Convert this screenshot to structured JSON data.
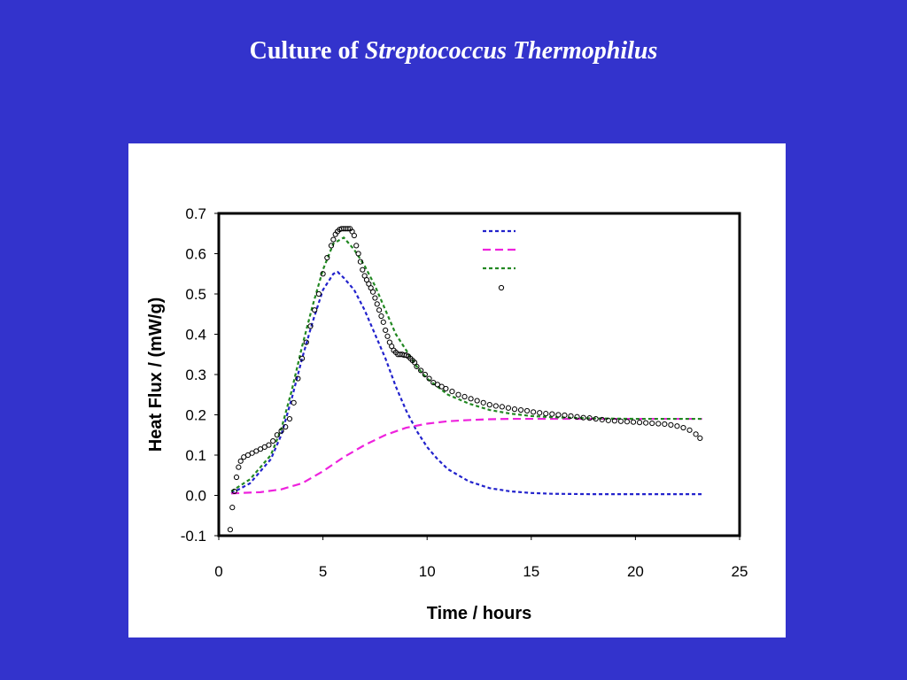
{
  "slide": {
    "title_plain": "Culture of ",
    "title_italic": "Streptococcus Thermophilus"
  },
  "colors": {
    "background": "#3333cc",
    "panel": "#ffffff",
    "series_blue": "#2222cc",
    "series_magenta": "#ee22dd",
    "series_green": "#228822",
    "series_points": "#000000"
  },
  "chart_data": {
    "type": "scatter",
    "xlabel": "Time / hours",
    "ylabel": "Heat Flux / (mW/g)",
    "xlim": [
      0,
      25
    ],
    "ylim": [
      -0.1,
      0.7
    ],
    "xticks": [
      "0",
      "5",
      "10",
      "15",
      "20",
      "25"
    ],
    "yticks": [
      "-0.1",
      "0.0",
      "0.1",
      "0.2",
      "0.3",
      "0.4",
      "0.5",
      "0.6",
      "0.7"
    ],
    "grid": false,
    "legend": {
      "placement": "top-right",
      "entries": [
        "",
        "",
        "",
        ""
      ]
    },
    "series": [
      {
        "style": "dashed-line",
        "color": "#2222cc",
        "x": [
          0.6,
          1.5,
          2.5,
          3.0,
          3.5,
          4.0,
          4.5,
          5.0,
          5.5,
          5.7,
          6.0,
          6.5,
          7.0,
          7.5,
          8.0,
          8.5,
          9.0,
          9.5,
          10.0,
          10.5,
          11.0,
          12.0,
          13.0,
          14.0,
          15.0,
          16.0,
          18.0,
          20.0,
          23.2
        ],
        "y": [
          0.005,
          0.03,
          0.09,
          0.15,
          0.24,
          0.34,
          0.43,
          0.51,
          0.55,
          0.555,
          0.54,
          0.51,
          0.46,
          0.4,
          0.34,
          0.27,
          0.21,
          0.16,
          0.12,
          0.09,
          0.065,
          0.035,
          0.018,
          0.01,
          0.006,
          0.004,
          0.003,
          0.003,
          0.003
        ]
      },
      {
        "style": "dashed-line",
        "color": "#ee22dd",
        "x": [
          0.6,
          2.0,
          3.0,
          4.0,
          5.0,
          6.0,
          7.0,
          8.0,
          9.0,
          10.0,
          11.0,
          12.0,
          13.0,
          14.0,
          16.0,
          18.0,
          20.0,
          23.2
        ],
        "y": [
          0.005,
          0.008,
          0.015,
          0.03,
          0.06,
          0.095,
          0.125,
          0.15,
          0.168,
          0.178,
          0.184,
          0.187,
          0.189,
          0.19,
          0.19,
          0.19,
          0.19,
          0.19
        ]
      },
      {
        "style": "dashed-line",
        "color": "#228822",
        "x": [
          0.6,
          1.5,
          2.5,
          3.0,
          3.5,
          4.0,
          4.5,
          5.0,
          5.5,
          6.0,
          6.5,
          7.0,
          7.5,
          8.0,
          8.5,
          9.0,
          9.5,
          10.0,
          11.0,
          12.0,
          13.0,
          14.0,
          15.0,
          16.0,
          18.0,
          20.0,
          23.2
        ],
        "y": [
          0.01,
          0.04,
          0.1,
          0.165,
          0.26,
          0.37,
          0.47,
          0.56,
          0.625,
          0.64,
          0.61,
          0.57,
          0.52,
          0.46,
          0.4,
          0.36,
          0.32,
          0.29,
          0.25,
          0.228,
          0.212,
          0.203,
          0.197,
          0.194,
          0.191,
          0.19,
          0.19
        ]
      },
      {
        "style": "open-circles",
        "color": "#000000",
        "x": [
          0.55,
          0.65,
          0.75,
          0.85,
          0.95,
          1.05,
          1.2,
          1.4,
          1.6,
          1.8,
          2.0,
          2.2,
          2.4,
          2.6,
          2.8,
          3.0,
          3.2,
          3.4,
          3.6,
          3.8,
          4.0,
          4.2,
          4.4,
          4.6,
          4.8,
          5.0,
          5.2,
          5.4,
          5.5,
          5.6,
          5.7,
          5.8,
          5.9,
          6.0,
          6.1,
          6.2,
          6.3,
          6.4,
          6.5,
          6.6,
          6.7,
          6.8,
          6.9,
          7.0,
          7.1,
          7.2,
          7.3,
          7.4,
          7.5,
          7.6,
          7.7,
          7.8,
          7.9,
          8.0,
          8.1,
          8.2,
          8.3,
          8.4,
          8.5,
          8.6,
          8.7,
          8.8,
          8.9,
          9.0,
          9.1,
          9.2,
          9.3,
          9.4,
          9.5,
          9.7,
          9.9,
          10.1,
          10.3,
          10.5,
          10.7,
          10.9,
          11.2,
          11.5,
          11.8,
          12.1,
          12.4,
          12.7,
          13.0,
          13.3,
          13.6,
          13.9,
          14.2,
          14.5,
          14.8,
          15.1,
          15.4,
          15.7,
          16.0,
          16.3,
          16.6,
          16.9,
          17.2,
          17.5,
          17.8,
          18.1,
          18.4,
          18.7,
          19.0,
          19.3,
          19.6,
          19.9,
          20.2,
          20.5,
          20.8,
          21.1,
          21.4,
          21.7,
          22.0,
          22.3,
          22.6,
          22.9,
          23.1
        ],
        "y": [
          -0.085,
          -0.03,
          0.01,
          0.045,
          0.07,
          0.085,
          0.095,
          0.1,
          0.105,
          0.11,
          0.115,
          0.12,
          0.125,
          0.135,
          0.15,
          0.16,
          0.17,
          0.19,
          0.23,
          0.29,
          0.34,
          0.38,
          0.42,
          0.46,
          0.5,
          0.55,
          0.59,
          0.62,
          0.635,
          0.648,
          0.655,
          0.66,
          0.662,
          0.662,
          0.662,
          0.662,
          0.662,
          0.655,
          0.645,
          0.62,
          0.6,
          0.58,
          0.56,
          0.545,
          0.535,
          0.525,
          0.515,
          0.505,
          0.49,
          0.475,
          0.46,
          0.445,
          0.43,
          0.41,
          0.395,
          0.38,
          0.37,
          0.36,
          0.355,
          0.35,
          0.35,
          0.35,
          0.348,
          0.348,
          0.345,
          0.34,
          0.335,
          0.33,
          0.32,
          0.31,
          0.3,
          0.29,
          0.28,
          0.275,
          0.27,
          0.265,
          0.258,
          0.25,
          0.245,
          0.24,
          0.235,
          0.23,
          0.225,
          0.222,
          0.22,
          0.217,
          0.214,
          0.212,
          0.21,
          0.207,
          0.205,
          0.203,
          0.202,
          0.2,
          0.199,
          0.197,
          0.195,
          0.193,
          0.192,
          0.19,
          0.188,
          0.186,
          0.185,
          0.184,
          0.183,
          0.182,
          0.181,
          0.18,
          0.179,
          0.178,
          0.177,
          0.175,
          0.172,
          0.168,
          0.162,
          0.152,
          0.142
        ]
      }
    ]
  }
}
